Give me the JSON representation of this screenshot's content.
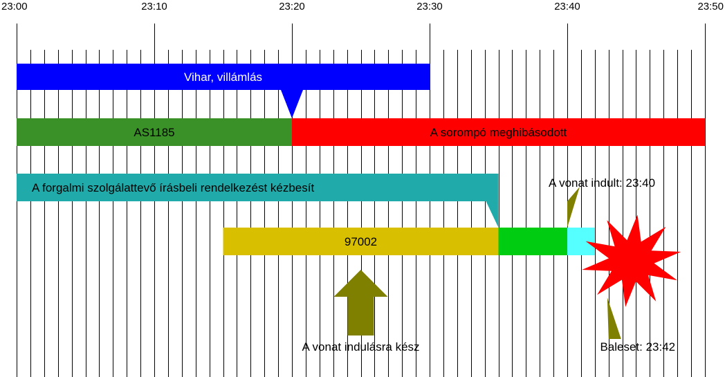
{
  "timeline": {
    "tick_labels": [
      "23:00",
      "23:10",
      "23:20",
      "23:30",
      "23:40",
      "23:50"
    ],
    "start": "23:00",
    "end": "23:50",
    "minor_step_minutes": 1
  },
  "bars": [
    {
      "id": "storm",
      "label": "Vihar, villámlás",
      "start": "23:00",
      "end": "23:30",
      "color": "#0000ff",
      "text_color": "#ffffff"
    },
    {
      "id": "as1185",
      "label": "AS1185",
      "start": "23:00",
      "end": "23:20",
      "color": "#3a9128",
      "text_color": "#000000"
    },
    {
      "id": "barrier",
      "label": "A sorompó meghibásodott",
      "start": "23:20",
      "end": "23:50",
      "color": "#ff0000",
      "text_color": "#000000"
    },
    {
      "id": "dispatcher",
      "label": "A forgalmi szolgálattevő írásbeli rendelkezést kézbesít",
      "start": "23:00",
      "end": "23:35",
      "color": "#20aaaa",
      "text_color": "#000000"
    },
    {
      "id": "train97002",
      "label": "97002",
      "start": "23:15",
      "end": "23:35",
      "color": "#d8c000",
      "text_color": "#000000"
    },
    {
      "id": "train-running",
      "label": "",
      "start": "23:35",
      "end": "23:40",
      "color": "#00cc11",
      "text_color": "#000000"
    },
    {
      "id": "train-final",
      "label": "",
      "start": "23:40",
      "end": "23:42",
      "color": "#55ffff",
      "text_color": "#000000"
    }
  ],
  "annotations": {
    "ready": {
      "label": "A vonat indulásra kész",
      "time": "23:25",
      "color": "#808000"
    },
    "departed": {
      "label": "A vonat indult: 23:40",
      "time": "23:40",
      "color": "#808000"
    },
    "accident": {
      "label": "Baleset: 23:42",
      "time": "23:42",
      "color": "#808000",
      "burst_color": "#ff0000"
    }
  },
  "colors": {
    "gridline": "#000000",
    "storm_pointer": "#0000ff",
    "dispatcher_pointer": "#20aaaa"
  }
}
